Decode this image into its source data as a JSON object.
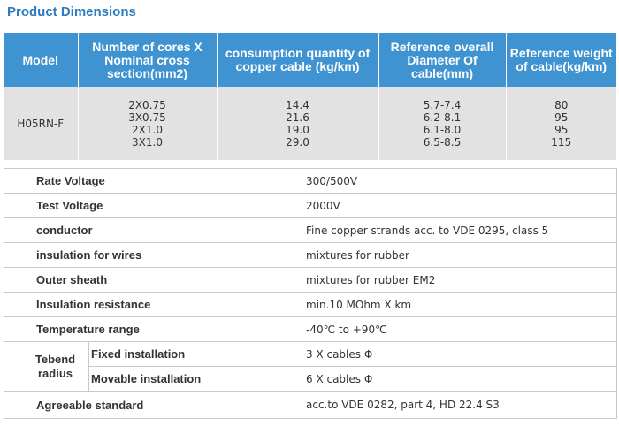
{
  "title": "Product Dimensions",
  "dimensions": {
    "headers": [
      "Model",
      "Number of cores X Nominal cross section(mm2)",
      "consumption quantity of copper cable (kg/km)",
      "Reference overall Diameter Of cable(mm)",
      "Reference weight of cable(kg/km)"
    ],
    "model": "H05RN-F",
    "cores": [
      "2X0.75",
      "3X0.75",
      "2X1.0",
      "3X1.0"
    ],
    "copper": [
      "14.4",
      "21.6",
      "19.0",
      "29.0"
    ],
    "diameter": [
      "5.7-7.4",
      "6.2-8.1",
      "6.1-8.0",
      "6.5-8.5"
    ],
    "weight": [
      "80",
      "95",
      "95",
      "115"
    ]
  },
  "specs": {
    "rate_voltage": {
      "label": "Rate Voltage",
      "value": "300/500V"
    },
    "test_voltage": {
      "label": "Test Voltage",
      "value": "2000V"
    },
    "conductor": {
      "label": "conductor",
      "value": "Fine copper strands acc. to VDE 0295, class 5"
    },
    "insulation": {
      "label": "insulation for wires",
      "value": "mixtures for rubber"
    },
    "sheath": {
      "label": "Outer sheath",
      "value": "mixtures for rubber EM2"
    },
    "resistance": {
      "label": "Insulation resistance",
      "value": "min.10 MOhm X km"
    },
    "temperature": {
      "label": "Temperature range",
      "value": "-40℃ to +90℃"
    },
    "tebend": {
      "label": "Tebend radius",
      "fixed": {
        "label": "Fixed installation",
        "value": "3 X cables Φ"
      },
      "movable": {
        "label": "Movable installation",
        "value": "6 X cables Φ"
      }
    },
    "standard": {
      "label": "Agreeable standard",
      "value": "acc.to VDE 0282, part 4, HD 22.4 S3"
    }
  }
}
